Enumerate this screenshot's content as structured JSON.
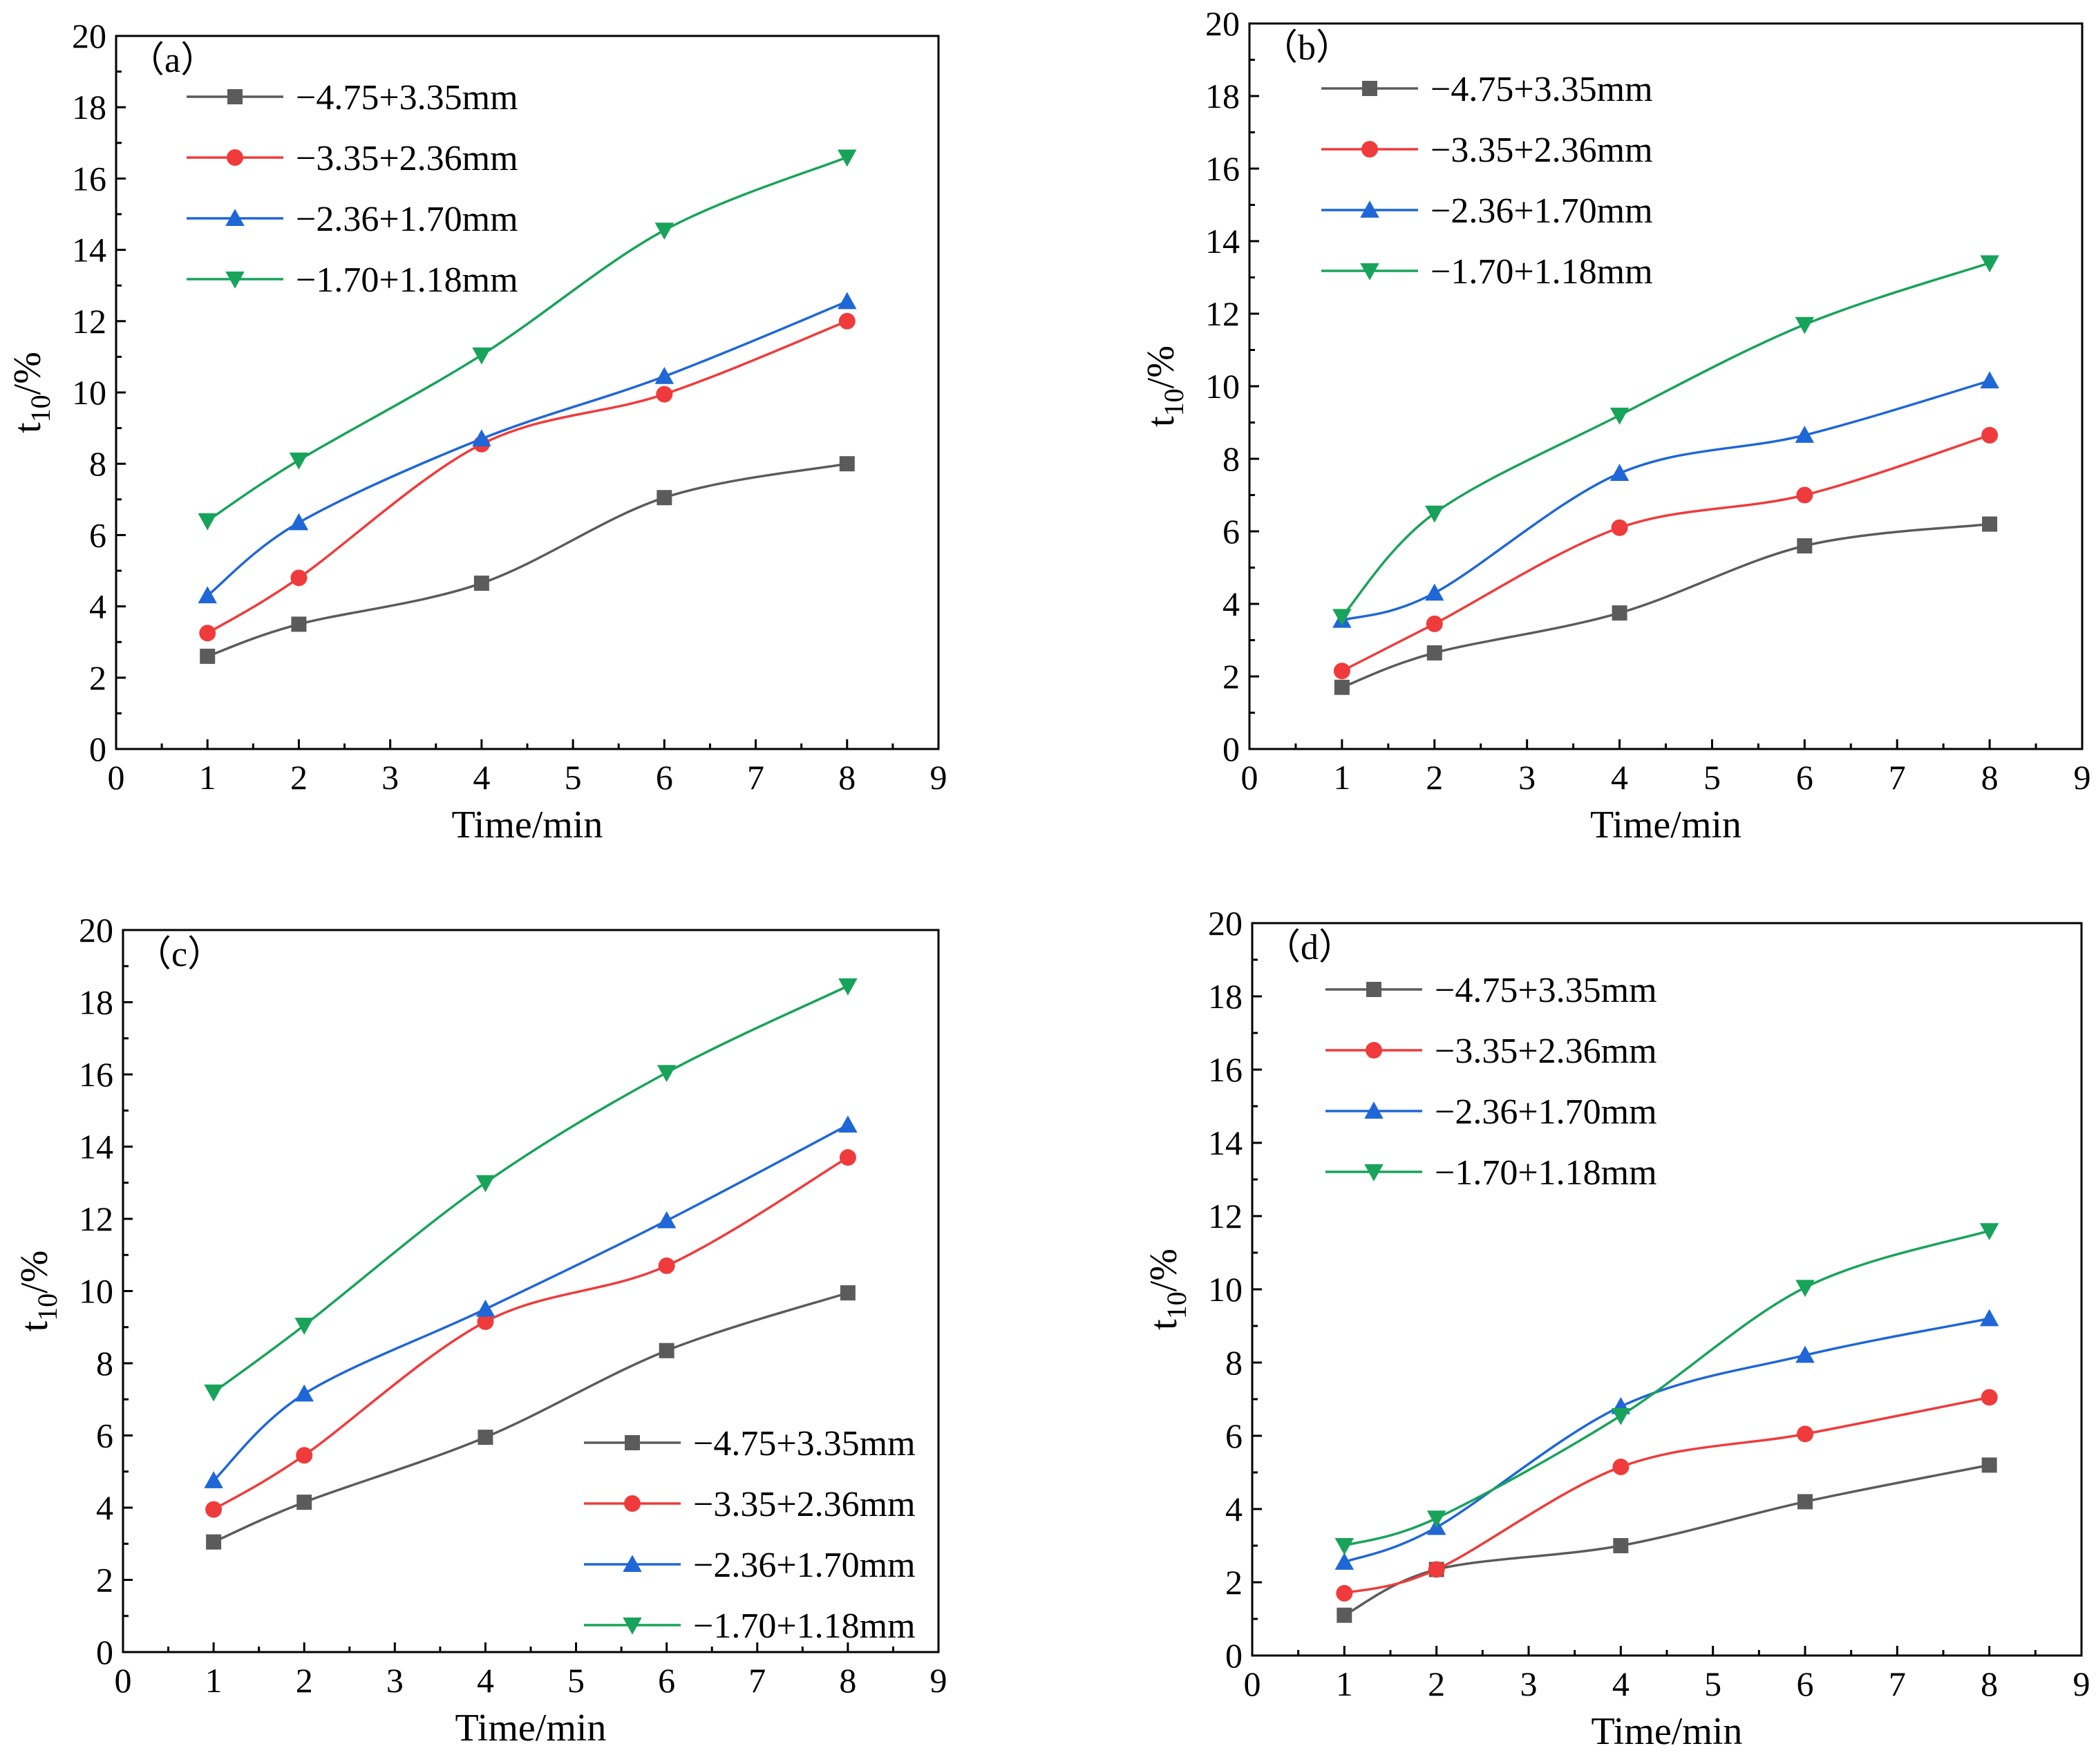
{
  "figure": {
    "colors": {
      "series1": "#5b5b5b",
      "series2": "#ef3b3b",
      "series3": "#1f67d6",
      "series4": "#18a35a"
    },
    "markers": [
      "square",
      "circle",
      "triangle-up",
      "triangle-down"
    ]
  },
  "chart_data": [
    {
      "type": "line",
      "panel_label": "（a）",
      "xlabel": "Time/min",
      "ylabel_main": "t",
      "ylabel_sub": "10",
      "ylabel_tail": "/%",
      "xlim": [
        0,
        9
      ],
      "ylim": [
        0,
        20
      ],
      "xticks": [
        "0",
        "1",
        "2",
        "3",
        "4",
        "5",
        "6",
        "7",
        "8",
        "9"
      ],
      "yticks": [
        "0",
        "2",
        "4",
        "6",
        "8",
        "10",
        "12",
        "14",
        "16",
        "18",
        "20"
      ],
      "legend_position": "top-left",
      "grid": false,
      "x": [
        1,
        2,
        4,
        6,
        8
      ],
      "series": [
        {
          "name": "−4.75+3.35mm",
          "values": [
            2.6,
            3.5,
            4.65,
            7.05,
            8.0
          ]
        },
        {
          "name": "−3.35+2.36mm",
          "values": [
            3.25,
            4.8,
            8.55,
            9.95,
            12.0
          ]
        },
        {
          "name": "−2.36+1.70mm",
          "values": [
            4.3,
            6.35,
            8.7,
            10.45,
            12.55
          ]
        },
        {
          "name": "−1.70+1.18mm",
          "values": [
            6.4,
            8.1,
            11.05,
            14.55,
            16.6
          ]
        }
      ]
    },
    {
      "type": "line",
      "panel_label": "（b）",
      "xlabel": "Time/min",
      "ylabel_main": "t",
      "ylabel_sub": "10",
      "ylabel_tail": "/%",
      "xlim": [
        0,
        9
      ],
      "ylim": [
        0,
        20
      ],
      "xticks": [
        "0",
        "1",
        "2",
        "3",
        "4",
        "5",
        "6",
        "7",
        "8",
        "9"
      ],
      "yticks": [
        "0",
        "2",
        "4",
        "6",
        "8",
        "10",
        "12",
        "14",
        "16",
        "18",
        "20"
      ],
      "legend_position": "top-left",
      "grid": false,
      "x": [
        1,
        2,
        4,
        6,
        8
      ],
      "series": [
        {
          "name": "−4.75+3.35mm",
          "values": [
            1.7,
            2.65,
            3.75,
            5.6,
            6.2
          ]
        },
        {
          "name": "−3.35+2.36mm",
          "values": [
            2.15,
            3.45,
            6.1,
            7.0,
            8.65
          ]
        },
        {
          "name": "−2.36+1.70mm",
          "values": [
            3.55,
            4.3,
            7.6,
            8.65,
            10.15
          ]
        },
        {
          "name": "−1.70+1.18mm",
          "values": [
            3.65,
            6.5,
            9.2,
            11.7,
            13.4
          ]
        }
      ]
    },
    {
      "type": "line",
      "panel_label": "（c）",
      "xlabel": "Time/min",
      "ylabel_main": "t",
      "ylabel_sub": "10",
      "ylabel_tail": "/%",
      "xlim": [
        0,
        9
      ],
      "ylim": [
        0,
        20
      ],
      "xticks": [
        "0",
        "1",
        "2",
        "3",
        "4",
        "5",
        "6",
        "7",
        "8",
        "9"
      ],
      "yticks": [
        "0",
        "2",
        "4",
        "6",
        "8",
        "10",
        "12",
        "14",
        "16",
        "18",
        "20"
      ],
      "legend_position": "bottom-right",
      "grid": false,
      "x": [
        1,
        2,
        4,
        6,
        8
      ],
      "series": [
        {
          "name": "−4.75+3.35mm",
          "values": [
            3.05,
            4.15,
            5.95,
            8.35,
            9.95
          ]
        },
        {
          "name": "−3.35+2.36mm",
          "values": [
            3.95,
            5.45,
            9.15,
            10.7,
            13.7
          ]
        },
        {
          "name": "−2.36+1.70mm",
          "values": [
            4.75,
            7.15,
            9.5,
            11.95,
            14.6
          ]
        },
        {
          "name": "−1.70+1.18mm",
          "values": [
            7.2,
            9.05,
            13.0,
            16.05,
            18.45
          ]
        }
      ]
    },
    {
      "type": "line",
      "panel_label": "（d）",
      "xlabel": "Time/min",
      "ylabel_main": "t",
      "ylabel_sub": "10",
      "ylabel_tail": "/%",
      "xlim": [
        0,
        9
      ],
      "ylim": [
        0,
        20
      ],
      "xticks": [
        "0",
        "1",
        "2",
        "3",
        "4",
        "5",
        "6",
        "7",
        "8",
        "9"
      ],
      "yticks": [
        "0",
        "2",
        "4",
        "6",
        "8",
        "10",
        "12",
        "14",
        "16",
        "18",
        "20"
      ],
      "legend_position": "top-left",
      "grid": false,
      "x": [
        1,
        2,
        4,
        6,
        8
      ],
      "series": [
        {
          "name": "−4.75+3.35mm",
          "values": [
            1.1,
            2.35,
            3.0,
            4.2,
            5.2
          ]
        },
        {
          "name": "−3.35+2.36mm",
          "values": [
            1.7,
            2.35,
            5.15,
            6.05,
            7.05
          ]
        },
        {
          "name": "−2.36+1.70mm",
          "values": [
            2.55,
            3.5,
            6.8,
            8.2,
            9.2
          ]
        },
        {
          "name": "−1.70+1.18mm",
          "values": [
            3.0,
            3.75,
            6.55,
            10.05,
            11.6
          ]
        }
      ]
    }
  ]
}
